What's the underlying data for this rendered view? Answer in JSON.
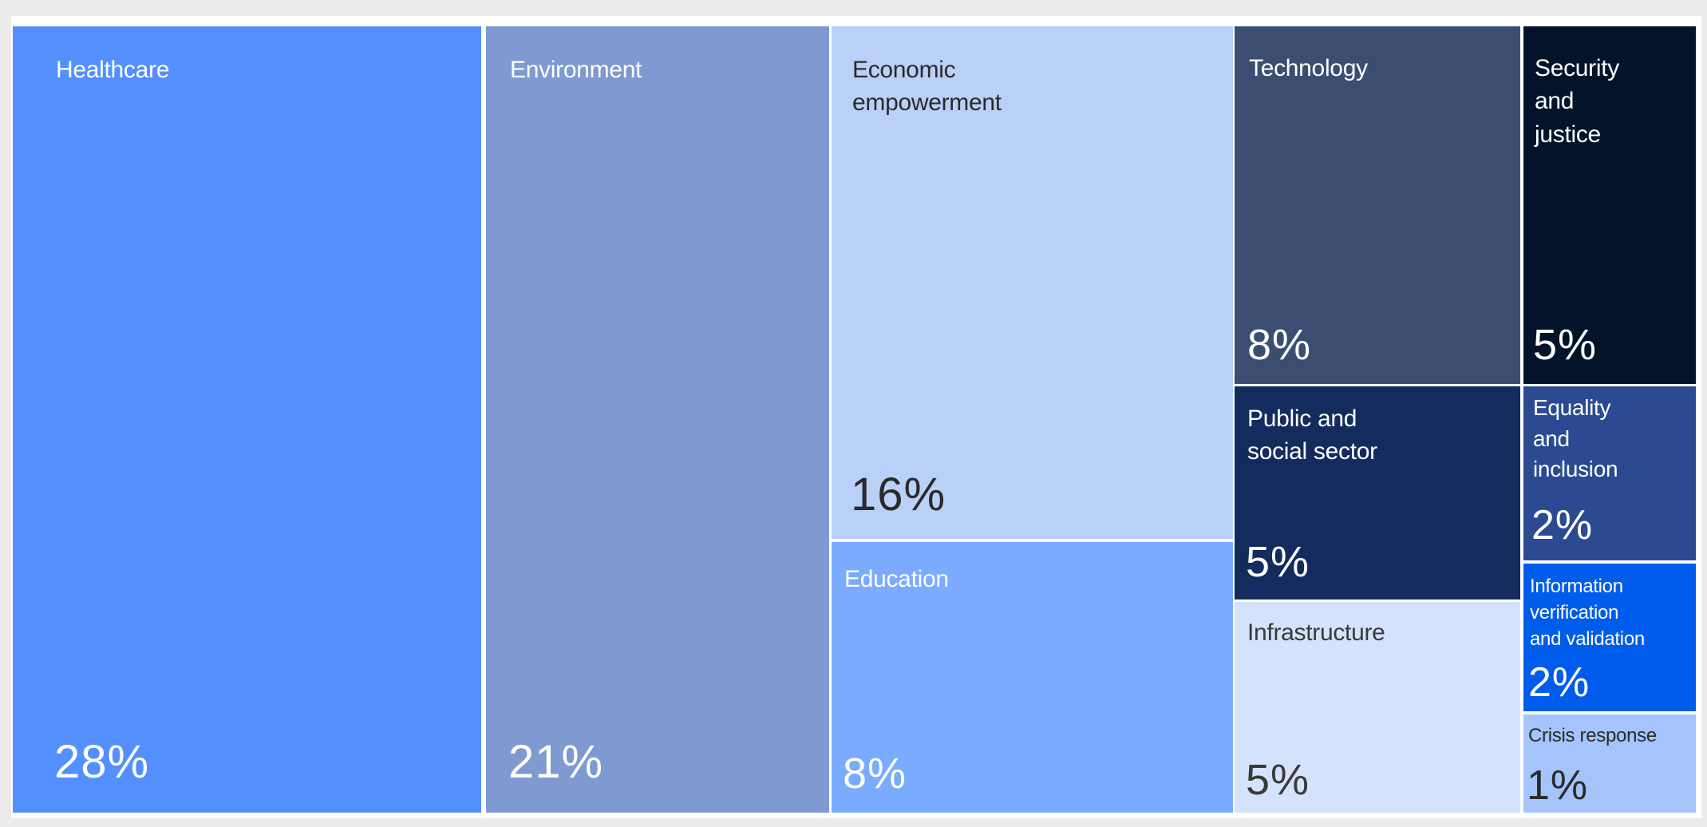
{
  "chart_data": {
    "type": "treemap",
    "unit": "%",
    "items": [
      {
        "label": "Healthcare",
        "value": 28,
        "value_label": "28%",
        "color": "#5390fd",
        "text_color": "#ffffff"
      },
      {
        "label": "Environment",
        "value": 21,
        "value_label": "21%",
        "color": "#7e9ad0",
        "text_color": "#ffffff"
      },
      {
        "label": "Economic\nempowerment",
        "value": 16,
        "value_label": "16%",
        "color": "#b9d0f7",
        "text_color": "#2a2a2a"
      },
      {
        "label": "Education",
        "value": 8,
        "value_label": "8%",
        "color": "#7aabff",
        "text_color": "#ffffff"
      },
      {
        "label": "Technology",
        "value": 8,
        "value_label": "8%",
        "color": "#3b4e72",
        "text_color": "#ffffff"
      },
      {
        "label": "Security\nand\njustice",
        "value": 5,
        "value_label": "5%",
        "color": "#03142a",
        "text_color": "#ffffff"
      },
      {
        "label": "Public and\nsocial sector",
        "value": 5,
        "value_label": "5%",
        "color": "#142b5e",
        "text_color": "#ffffff"
      },
      {
        "label": "Infrastructure",
        "value": 5,
        "value_label": "5%",
        "color": "#d4e2fc",
        "text_color": "#3a3a3a"
      },
      {
        "label": "Equality\nand\ninclusion",
        "value": 2,
        "value_label": "2%",
        "color": "#2b4a91",
        "text_color": "#ffffff"
      },
      {
        "label": "Information\nverification\nand validation",
        "value": 2,
        "value_label": "2%",
        "color": "#005ceb",
        "text_color": "#ffffff"
      },
      {
        "label": "Crisis response",
        "value": 1,
        "value_label": "1%",
        "color": "#a5c4fc",
        "text_color": "#2a2a2a"
      }
    ]
  }
}
